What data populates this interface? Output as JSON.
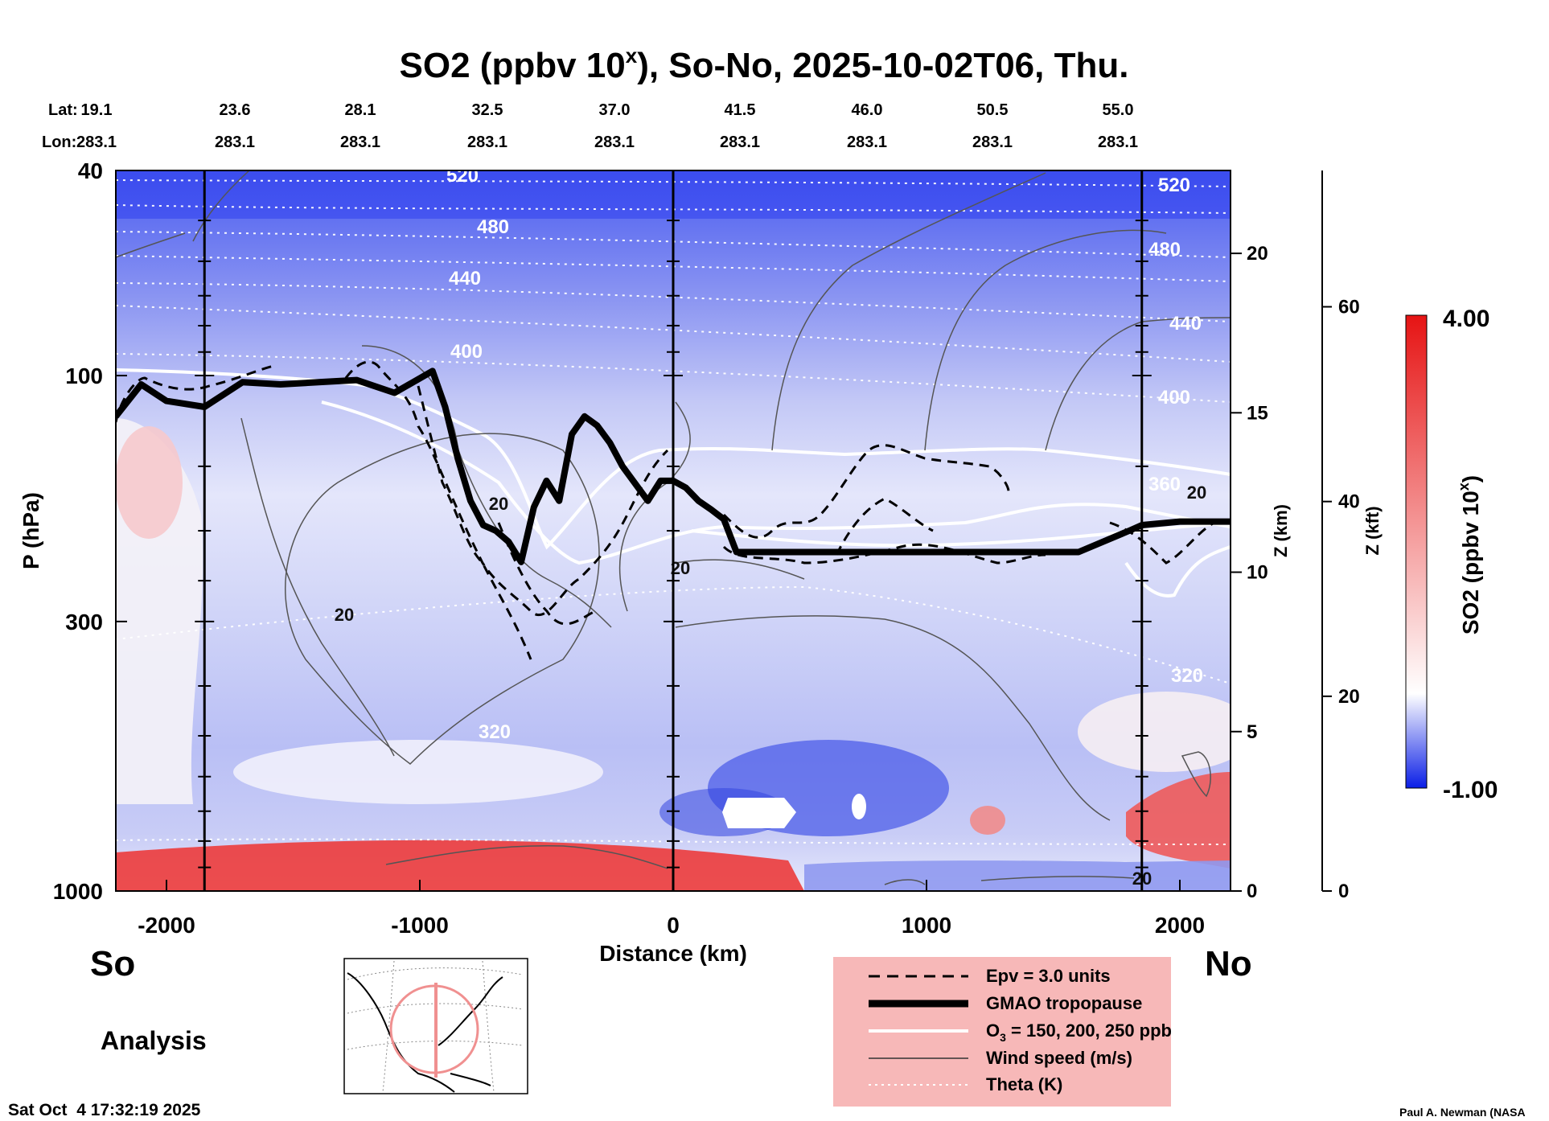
{
  "chart_data": {
    "type": "contour-cross-section",
    "title": "SO2 (ppbv 10",
    "title_superscript": "x",
    "title_rest": "), So-No, 2025-10-02T06, Thu.",
    "lat_label": "Lat:",
    "lon_label": "Lon:",
    "lat": [
      "19.1",
      "23.6",
      "28.1",
      "32.5",
      "37.0",
      "41.5",
      "46.0",
      "50.5",
      "55.0"
    ],
    "lon": [
      "283.1",
      "283.1",
      "283.1",
      "283.1",
      "283.1",
      "283.1",
      "283.1",
      "283.1",
      "283.1"
    ],
    "xlabel": "Distance (km)",
    "xlim": [
      -2200,
      2200
    ],
    "x_ticks": [
      -2000,
      -1000,
      0,
      1000,
      2000
    ],
    "x_tick_labels": [
      "-2000",
      "-1000",
      "0",
      "1000",
      "2000"
    ],
    "ylabel": "P (hPa)",
    "ylim": [
      1000,
      40
    ],
    "y_ticks": [
      40,
      100,
      300,
      1000
    ],
    "y_tick_labels": [
      "40",
      "100",
      "300",
      "1000"
    ],
    "z_km_label": "Z (km)",
    "z_km_ticks": [
      0,
      5,
      10,
      15,
      20
    ],
    "z_km_tick_labels": [
      "0",
      "5",
      "10",
      "15",
      "20"
    ],
    "z_kft_label": "Z (kft)",
    "z_kft_ticks": [
      0,
      20,
      40,
      60
    ],
    "z_kft_tick_labels": [
      "0",
      "20",
      "40",
      "60"
    ],
    "vertical_lines_km": [
      -1850,
      0,
      1850
    ],
    "south_label": "So",
    "north_label": "No",
    "colorbar": {
      "label": "SO2 (ppbv 10",
      "label_sup": "x",
      "label_end": ")",
      "min": -1.0,
      "max": 4.0,
      "min_label": "-1.00",
      "max_label": "4.00",
      "low_color": "#0a1ee6",
      "mid_color": "#ffffff",
      "high_color": "#e61414"
    },
    "theta_isentropes_K": [
      320,
      360,
      400,
      440,
      480,
      520
    ],
    "theta_labels_left": [
      "520",
      "480",
      "440",
      "400",
      "320"
    ],
    "theta_labels_right": [
      "520",
      "480",
      "440",
      "400",
      "360",
      "320"
    ],
    "wind_contour_labels": [
      "20",
      "20",
      "20",
      "20",
      "20"
    ],
    "tropopause": {
      "x": [
        -2200,
        -2100,
        -2000,
        -1850,
        -1700,
        -1550,
        -1400,
        -1250,
        -1100,
        -950,
        -900,
        -850,
        -800,
        -750,
        -700,
        -650,
        -600,
        -550,
        -500,
        -450,
        -400,
        -350,
        -300,
        -250,
        -200,
        -100,
        -50,
        0,
        50,
        100,
        150,
        200,
        250,
        400,
        600,
        800,
        1000,
        1200,
        1400,
        1600,
        1800,
        1850,
        2000,
        2200
      ],
      "p": [
        120,
        104,
        112,
        115,
        103,
        104,
        103,
        102,
        108,
        98,
        115,
        145,
        175,
        195,
        200,
        210,
        230,
        180,
        160,
        175,
        130,
        120,
        125,
        135,
        150,
        175,
        160,
        160,
        165,
        175,
        182,
        190,
        220,
        220,
        220,
        220,
        220,
        220,
        220,
        220,
        200,
        195,
        192,
        192
      ]
    },
    "legend": [
      {
        "label": "Epv = 3.0 units",
        "style": "dashed"
      },
      {
        "label": "GMAO tropopause",
        "style": "thick"
      },
      {
        "label": "O",
        "sub": "3",
        "rest": " = 150, 200, 250 ppb",
        "style": "white"
      },
      {
        "label": "Wind speed (m/s)",
        "style": "thin"
      },
      {
        "label": "Theta (K)",
        "style": "dotted"
      }
    ],
    "analysis_label": "Analysis",
    "timestamp": "Sat Oct  4 17:32:19 2025",
    "credit": "Paul A. Newman (NASA"
  }
}
